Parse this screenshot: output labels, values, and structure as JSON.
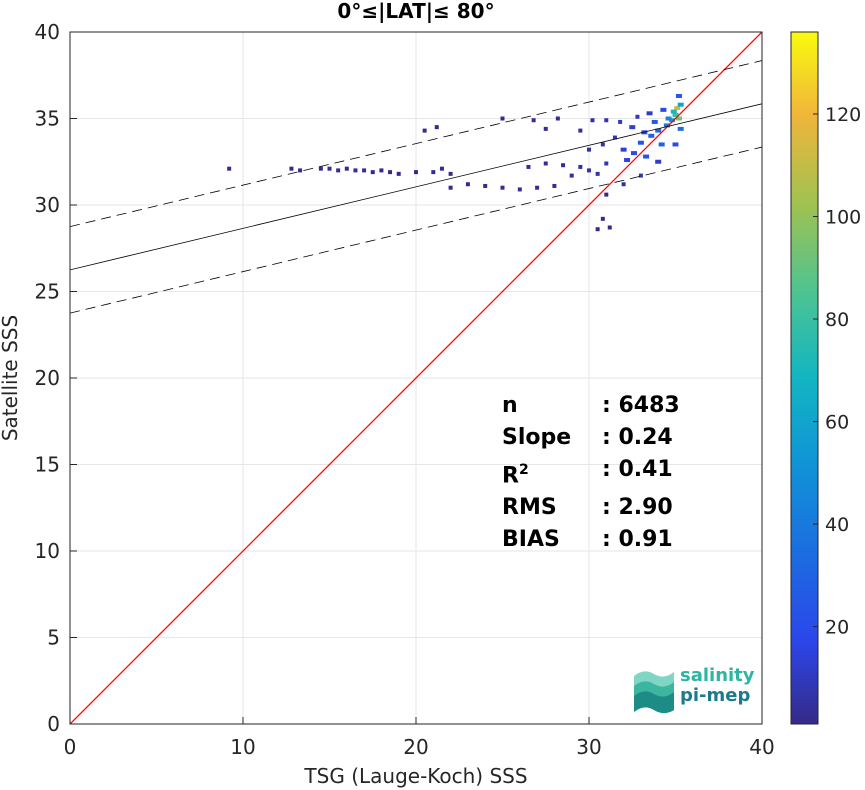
{
  "chart_data": {
    "type": "heatmap",
    "title": "0°≤|LAT|≤ 80°",
    "xlabel": "TSG (Lauge-Koch) SSS",
    "ylabel": "Satellite SSS",
    "xlim": [
      0,
      40
    ],
    "ylim": [
      0,
      40
    ],
    "xticks": [
      "0",
      "10",
      "20",
      "30",
      "40"
    ],
    "yticks": [
      "0",
      "5",
      "10",
      "15",
      "20",
      "25",
      "30",
      "35",
      "40"
    ],
    "grid": true,
    "colorbar": {
      "min": 1,
      "max": 136,
      "ticks": [
        "20",
        "40",
        "60",
        "80",
        "100",
        "120"
      ],
      "colormap": "parula"
    },
    "identity_line": {
      "color": "#ff0000",
      "from": [
        0,
        0
      ],
      "to": [
        40,
        40
      ]
    },
    "fit_line": {
      "intercept": 26.25,
      "slope": 0.24,
      "color": "#000000"
    },
    "fit_bounds_offset": 2.5,
    "density_points": [
      [
        9.2,
        32.1,
        2
      ],
      [
        14.5,
        32.1,
        3
      ],
      [
        15.0,
        32.1,
        3
      ],
      [
        15.5,
        32.0,
        3
      ],
      [
        16.0,
        32.1,
        2
      ],
      [
        16.5,
        32.0,
        3
      ],
      [
        17.0,
        32.0,
        3
      ],
      [
        17.5,
        31.9,
        2
      ],
      [
        18.0,
        32.0,
        2
      ],
      [
        18.5,
        31.9,
        2
      ],
      [
        19.0,
        31.8,
        2
      ],
      [
        20.0,
        31.9,
        2
      ],
      [
        21.0,
        31.9,
        2
      ],
      [
        21.5,
        32.1,
        2
      ],
      [
        22.0,
        31.8,
        2
      ],
      [
        12.8,
        32.1,
        2
      ],
      [
        13.3,
        32.0,
        2
      ],
      [
        20.5,
        34.3,
        2
      ],
      [
        21.2,
        34.5,
        2
      ],
      [
        22.0,
        31.0,
        2
      ],
      [
        23.0,
        31.2,
        2
      ],
      [
        24.0,
        31.1,
        2
      ],
      [
        25.0,
        31.0,
        2
      ],
      [
        26.0,
        30.9,
        3
      ],
      [
        27.0,
        31.0,
        3
      ],
      [
        28.0,
        31.1,
        3
      ],
      [
        26.5,
        32.2,
        3
      ],
      [
        27.5,
        32.4,
        3
      ],
      [
        28.5,
        32.3,
        4
      ],
      [
        29.0,
        31.7,
        4
      ],
      [
        29.5,
        32.2,
        5
      ],
      [
        30.0,
        32.0,
        6
      ],
      [
        30.5,
        31.8,
        6
      ],
      [
        31.0,
        32.4,
        8
      ],
      [
        30.0,
        33.2,
        5
      ],
      [
        30.8,
        33.5,
        6
      ],
      [
        31.5,
        33.9,
        10
      ],
      [
        32.0,
        33.2,
        14
      ],
      [
        32.2,
        32.6,
        16
      ],
      [
        32.6,
        33.0,
        20
      ],
      [
        33.0,
        33.6,
        24
      ],
      [
        33.3,
        32.8,
        22
      ],
      [
        33.6,
        34.0,
        28
      ],
      [
        34.0,
        34.3,
        32
      ],
      [
        34.2,
        33.5,
        30
      ],
      [
        34.5,
        34.6,
        40
      ],
      [
        34.8,
        34.9,
        55
      ],
      [
        35.0,
        35.2,
        80
      ],
      [
        35.1,
        35.6,
        110
      ],
      [
        35.2,
        35.0,
        95
      ],
      [
        34.9,
        35.4,
        70
      ],
      [
        34.6,
        35.0,
        45
      ],
      [
        33.8,
        34.8,
        26
      ],
      [
        33.2,
        34.2,
        18
      ],
      [
        32.5,
        34.5,
        14
      ],
      [
        31.8,
        34.8,
        10
      ],
      [
        31.0,
        34.9,
        7
      ],
      [
        30.2,
        34.9,
        5
      ],
      [
        29.5,
        34.3,
        4
      ],
      [
        28.2,
        35.0,
        3
      ],
      [
        26.8,
        34.9,
        3
      ],
      [
        25.0,
        35.0,
        2
      ],
      [
        27.5,
        34.4,
        3
      ],
      [
        30.8,
        29.2,
        2
      ],
      [
        31.2,
        28.7,
        2
      ],
      [
        30.5,
        28.6,
        2
      ],
      [
        31.0,
        30.6,
        2
      ],
      [
        32.0,
        31.2,
        5
      ],
      [
        33.0,
        31.7,
        8
      ],
      [
        34.0,
        32.5,
        12
      ],
      [
        35.0,
        33.5,
        20
      ],
      [
        35.3,
        34.4,
        35
      ],
      [
        35.3,
        35.8,
        60
      ],
      [
        35.2,
        36.3,
        25
      ],
      [
        34.3,
        35.5,
        18
      ],
      [
        33.5,
        35.3,
        12
      ],
      [
        32.8,
        35.1,
        9
      ]
    ],
    "annotations": {
      "n_label": "n",
      "n_value": ": 6483",
      "slope_label": "Slope",
      "slope_value": ": 0.24",
      "r2_label": "R",
      "r2_sup": "2",
      "r2_value": ": 0.41",
      "rms_label": "RMS",
      "rms_value": ": 2.90",
      "bias_label": "BIAS",
      "bias_value": ": 0.91"
    },
    "logo": {
      "line1": "salinity",
      "line2": "pi-mep"
    }
  }
}
